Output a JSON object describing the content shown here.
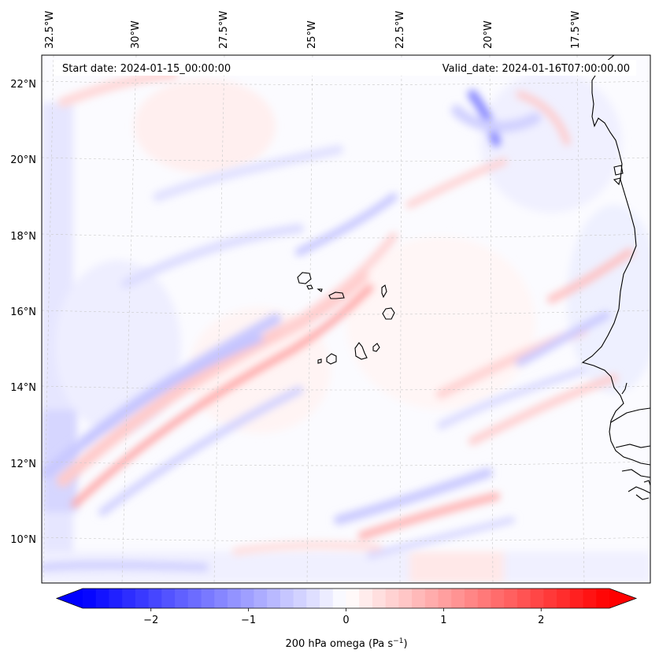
{
  "map": {
    "start_date_label": "Start date: 2024-01-15_00:00:00",
    "valid_date_label": "Valid_date: 2024-01-16T07:00:00.00",
    "lon_labels": [
      "32.5°W",
      "30°W",
      "27.5°W",
      "25°W",
      "22.5°W",
      "20°W",
      "17.5°W"
    ],
    "lat_labels": [
      "22°N",
      "20°N",
      "18°N",
      "16°N",
      "14°N",
      "12°N",
      "10°N"
    ],
    "field": "200 hPa omega",
    "land_features": [
      "Cape Verde islands",
      "West African coastline"
    ]
  },
  "colorbar": {
    "label": "200 hPa omega (Pa s",
    "label_exponent": "−1",
    "label_close": ")",
    "ticks": [
      "−2",
      "−1",
      "0",
      "1",
      "2"
    ],
    "tick_values": [
      -2,
      -1,
      0,
      1,
      2
    ],
    "range": [
      -2.7,
      2.7
    ],
    "cmap": "bwr",
    "color_min": "#0000ff",
    "color_mid": "#ffffff",
    "color_max": "#ff0000"
  }
}
